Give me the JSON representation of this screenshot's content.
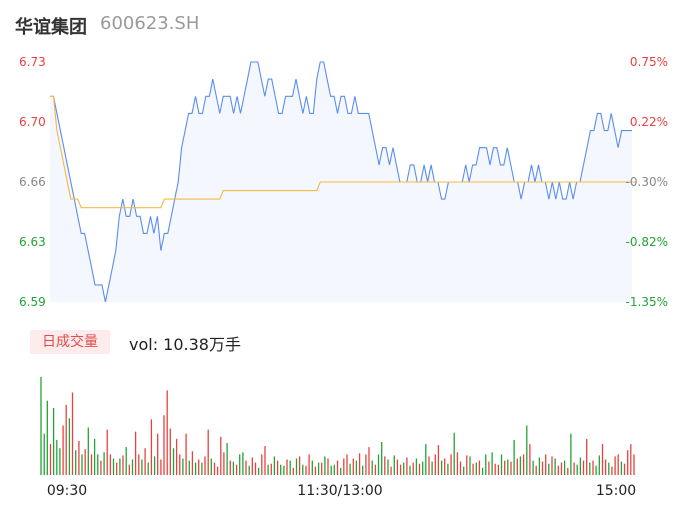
{
  "header": {
    "name": "华谊集团",
    "code": "600623.SH"
  },
  "volume_panel": {
    "tab_label": "日成交量",
    "vol_text": "vol: 10.38万手"
  },
  "colors": {
    "price_line": "#5b8def",
    "avg_line": "#f5b942",
    "up": "#e8413f",
    "down": "#21a336",
    "fill": "#f4f7fd"
  },
  "chart_data": [
    {
      "type": "line",
      "y_ticks_left": [
        "6.73",
        "6.70",
        "6.66",
        "6.63",
        "6.59"
      ],
      "y_ticks_right": [
        "0.75%",
        "0.22%",
        "-0.30%",
        "-0.82%",
        "-1.35%"
      ],
      "ylim": [
        6.59,
        6.73
      ],
      "x_ticks": [
        "09:30",
        "11:30/13:00",
        "15:00"
      ],
      "series": [
        {
          "role": "price",
          "values": [
            6.71,
            6.71,
            6.7,
            6.69,
            6.68,
            6.67,
            6.66,
            6.65,
            6.64,
            6.63,
            6.63,
            6.62,
            6.61,
            6.6,
            6.6,
            6.6,
            6.59,
            6.6,
            6.61,
            6.62,
            6.64,
            6.65,
            6.64,
            6.64,
            6.65,
            6.64,
            6.64,
            6.63,
            6.63,
            6.64,
            6.63,
            6.64,
            6.62,
            6.63,
            6.63,
            6.64,
            6.65,
            6.66,
            6.68,
            6.69,
            6.7,
            6.7,
            6.71,
            6.7,
            6.7,
            6.71,
            6.71,
            6.72,
            6.71,
            6.7,
            6.71,
            6.71,
            6.71,
            6.7,
            6.71,
            6.7,
            6.71,
            6.72,
            6.73,
            6.73,
            6.73,
            6.72,
            6.71,
            6.72,
            6.72,
            6.71,
            6.7,
            6.7,
            6.71,
            6.71,
            6.71,
            6.72,
            6.71,
            6.7,
            6.71,
            6.7,
            6.7,
            6.72,
            6.73,
            6.73,
            6.72,
            6.71,
            6.71,
            6.7,
            6.71,
            6.71,
            6.7,
            6.7,
            6.71,
            6.7,
            6.7,
            6.7,
            6.7,
            6.69,
            6.68,
            6.67,
            6.68,
            6.68,
            6.67,
            6.68,
            6.67,
            6.66,
            6.66,
            6.66,
            6.67,
            6.67,
            6.66,
            6.66,
            6.67,
            6.66,
            6.67,
            6.66,
            6.66,
            6.65,
            6.65,
            6.66,
            6.66,
            6.66,
            6.66,
            6.66,
            6.67,
            6.66,
            6.67,
            6.67,
            6.68,
            6.68,
            6.68,
            6.67,
            6.68,
            6.68,
            6.67,
            6.67,
            6.68,
            6.67,
            6.66,
            6.66,
            6.65,
            6.66,
            6.66,
            6.67,
            6.66,
            6.67,
            6.66,
            6.66,
            6.65,
            6.66,
            6.65,
            6.66,
            6.65,
            6.65,
            6.66,
            6.65,
            6.66,
            6.66,
            6.67,
            6.68,
            6.69,
            6.69,
            6.7,
            6.7,
            6.69,
            6.69,
            6.7,
            6.69,
            6.68,
            6.69,
            6.69,
            6.69,
            6.69
          ]
        },
        {
          "role": "average",
          "values": [
            6.71,
            6.71,
            6.69,
            6.68,
            6.67,
            6.66,
            6.65,
            6.65,
            6.65,
            6.645,
            6.645,
            6.645,
            6.645,
            6.645,
            6.645,
            6.645,
            6.645,
            6.645,
            6.645,
            6.645,
            6.645,
            6.645,
            6.645,
            6.645,
            6.645,
            6.645,
            6.645,
            6.645,
            6.645,
            6.645,
            6.645,
            6.645,
            6.645,
            6.65,
            6.65,
            6.65,
            6.65,
            6.65,
            6.65,
            6.65,
            6.65,
            6.65,
            6.65,
            6.65,
            6.65,
            6.65,
            6.65,
            6.65,
            6.65,
            6.65,
            6.655,
            6.655,
            6.655,
            6.655,
            6.655,
            6.655,
            6.655,
            6.655,
            6.655,
            6.655,
            6.655,
            6.655,
            6.655,
            6.655,
            6.655,
            6.655,
            6.655,
            6.655,
            6.655,
            6.655,
            6.655,
            6.655,
            6.655,
            6.655,
            6.655,
            6.655,
            6.655,
            6.655,
            6.66,
            6.66,
            6.66,
            6.66,
            6.66,
            6.66,
            6.66,
            6.66,
            6.66,
            6.66,
            6.66,
            6.66,
            6.66,
            6.66,
            6.66,
            6.66,
            6.66,
            6.66,
            6.66,
            6.66,
            6.66,
            6.66,
            6.66,
            6.66,
            6.66,
            6.66,
            6.66,
            6.66,
            6.66,
            6.66,
            6.66,
            6.66,
            6.66,
            6.66,
            6.66,
            6.66,
            6.66,
            6.66,
            6.66,
            6.66,
            6.66,
            6.66,
            6.66,
            6.66,
            6.66,
            6.66,
            6.66,
            6.66,
            6.66,
            6.66,
            6.66,
            6.66,
            6.66,
            6.66,
            6.66,
            6.66,
            6.66,
            6.66,
            6.66,
            6.66,
            6.66,
            6.66,
            6.66,
            6.66,
            6.66,
            6.66,
            6.66,
            6.66,
            6.66,
            6.66,
            6.66,
            6.66,
            6.66,
            6.66,
            6.66,
            6.66,
            6.66,
            6.66,
            6.66,
            6.66,
            6.66,
            6.66,
            6.66,
            6.66,
            6.66,
            6.66,
            6.66,
            6.66,
            6.66,
            6.66,
            6.66,
            6.66
          ]
        }
      ]
    },
    {
      "type": "bar",
      "values": [
        95,
        40,
        72,
        30,
        65,
        34,
        26,
        48,
        68,
        55,
        80,
        24,
        33,
        20,
        25,
        46,
        20,
        35,
        20,
        14,
        22,
        44,
        20,
        16,
        12,
        16,
        19,
        27,
        10,
        15,
        42,
        20,
        15,
        26,
        12,
        54,
        18,
        40,
        15,
        58,
        82,
        45,
        26,
        35,
        20,
        16,
        40,
        14,
        23,
        12,
        15,
        12,
        18,
        44,
        16,
        12,
        8,
        37,
        22,
        31,
        14,
        13,
        10,
        20,
        22,
        14,
        9,
        17,
        12,
        7,
        20,
        28,
        10,
        11,
        18,
        14,
        10,
        9,
        15,
        14,
        7,
        16,
        18,
        10,
        9,
        20,
        14,
        8,
        12,
        12,
        18,
        16,
        9,
        10,
        14,
        7,
        16,
        20,
        11,
        16,
        14,
        21,
        9,
        20,
        27,
        14,
        10,
        20,
        32,
        18,
        15,
        8,
        19,
        15,
        10,
        12,
        17,
        9,
        12,
        16,
        11,
        13,
        30,
        18,
        13,
        20,
        29,
        14,
        16,
        11,
        20,
        41,
        22,
        13,
        8,
        19,
        18,
        11,
        12,
        14,
        7,
        20,
        13,
        22,
        11,
        10,
        20,
        14,
        15,
        13,
        34,
        16,
        18,
        20,
        48,
        30,
        14,
        9,
        17,
        13,
        20,
        11,
        18,
        16,
        9,
        12,
        14,
        7,
        40,
        12,
        10,
        17,
        14,
        35,
        12,
        14,
        9,
        19,
        30,
        15,
        12,
        8,
        18,
        20,
        13,
        11,
        24,
        30,
        20
      ],
      "colors": [
        "down",
        "down",
        "down",
        "up",
        "down",
        "down",
        "down",
        "up",
        "up",
        "down",
        "up",
        "down",
        "up",
        "down",
        "up",
        "down",
        "up",
        "down",
        "down",
        "up",
        "down",
        "up",
        "up",
        "down",
        "up",
        "down",
        "up",
        "down",
        "up",
        "down",
        "up",
        "up",
        "down",
        "up",
        "down",
        "up",
        "down",
        "up",
        "up",
        "up",
        "up",
        "up",
        "down",
        "up",
        "up",
        "down",
        "up",
        "down",
        "up",
        "down",
        "up",
        "down",
        "up",
        "up",
        "down",
        "up",
        "up",
        "up",
        "up",
        "down",
        "up",
        "down",
        "up",
        "down",
        "down",
        "up",
        "down",
        "up",
        "up",
        "down",
        "up",
        "up",
        "down",
        "up",
        "down",
        "up",
        "down",
        "down",
        "up",
        "down",
        "up",
        "down",
        "up",
        "down",
        "up",
        "up",
        "down",
        "up",
        "down",
        "up",
        "down",
        "up",
        "down",
        "down",
        "up",
        "down",
        "up",
        "up",
        "down",
        "up",
        "down",
        "up",
        "down",
        "up",
        "up",
        "down",
        "up",
        "down",
        "down",
        "up",
        "down",
        "up",
        "down",
        "up",
        "up",
        "down",
        "up",
        "down",
        "up",
        "down",
        "up",
        "down",
        "down",
        "up",
        "down",
        "up",
        "up",
        "down",
        "up",
        "down",
        "up",
        "down",
        "up",
        "up",
        "down",
        "up",
        "down",
        "up",
        "down",
        "up",
        "down",
        "down",
        "up",
        "down",
        "up",
        "up",
        "down",
        "up",
        "down",
        "up",
        "down",
        "up",
        "down",
        "up",
        "down",
        "up",
        "down",
        "up",
        "down",
        "up",
        "up",
        "down",
        "up",
        "down",
        "up",
        "up",
        "down",
        "up",
        "down",
        "up",
        "down",
        "down",
        "up",
        "up",
        "down",
        "up",
        "down",
        "down",
        "up",
        "up",
        "down",
        "up",
        "up",
        "up",
        "down"
      ]
    }
  ]
}
